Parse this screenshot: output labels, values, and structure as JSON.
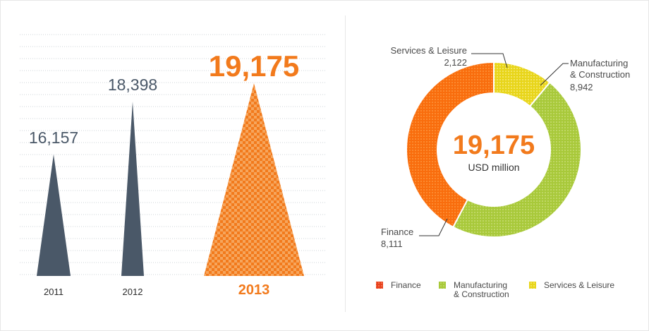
{
  "chart_data": [
    {
      "type": "bar",
      "categories": [
        "2011",
        "2012",
        "2013"
      ],
      "values": [
        16157,
        18398,
        19175
      ],
      "value_labels": [
        "16,157",
        "18,398",
        "19,175"
      ],
      "highlight_index": 2,
      "grid": true,
      "colors": {
        "normal": "#4a5868",
        "highlight": "#f27a1c"
      }
    },
    {
      "type": "pie",
      "style": "donut",
      "center_value": "19,175",
      "center_unit": "USD million",
      "slices": [
        {
          "name": "Finance",
          "value": 8111,
          "value_label": "8,111",
          "color": "#f96d0d"
        },
        {
          "name": "Manufacturing & Construction",
          "name_lines": [
            "Manufacturing",
            "& Construction"
          ],
          "value": 8942,
          "value_label": "8,942",
          "color": "#a8c93a"
        },
        {
          "name": "Services & Leisure",
          "value": 2122,
          "value_label": "2,122",
          "color": "#e8d51a"
        }
      ],
      "legend": {
        "placement": "bottom",
        "items": [
          {
            "lines": [
              "Finance"
            ],
            "color": "#e8411d"
          },
          {
            "lines": [
              "Manufacturing",
              "& Construction"
            ],
            "color": "#a8c93a"
          },
          {
            "lines": [
              "Services & Leisure"
            ],
            "color": "#e8d51a"
          }
        ]
      }
    }
  ]
}
